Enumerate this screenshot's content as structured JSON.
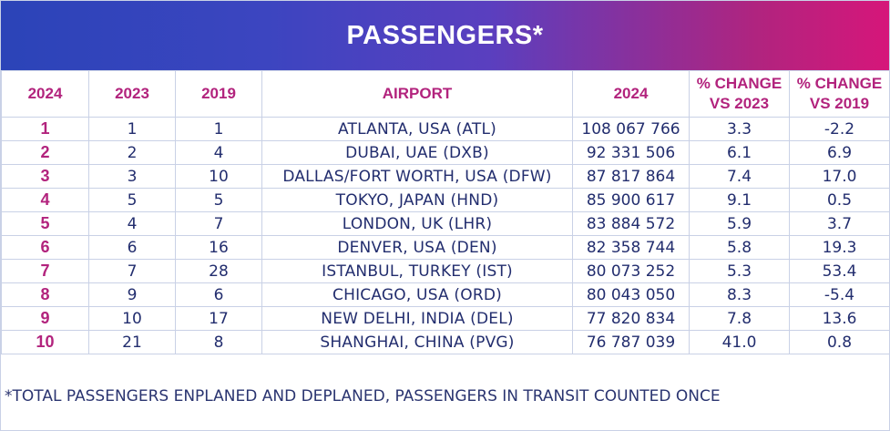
{
  "title": "PASSENGERS*",
  "headers": [
    "2024",
    "2023",
    "2019",
    "AIRPORT",
    "2024",
    "% CHANGE VS 2023",
    "% CHANGE VS 2019"
  ],
  "headers_lines": [
    [
      "2024"
    ],
    [
      "2023"
    ],
    [
      "2019"
    ],
    [
      "AIRPORT"
    ],
    [
      "2024"
    ],
    [
      "% CHANGE",
      "VS 2023"
    ],
    [
      "% CHANGE",
      "VS 2019"
    ]
  ],
  "rows": [
    [
      "1",
      "1",
      "1",
      "ATLANTA, USA (ATL)",
      "108 067 766",
      "3.3",
      "-2.2"
    ],
    [
      "2",
      "2",
      "4",
      "DUBAI, UAE (DXB)",
      "92 331 506",
      "6.1",
      "6.9"
    ],
    [
      "3",
      "3",
      "10",
      "DALLAS/FORT WORTH, USA (DFW)",
      "87 817 864",
      "7.4",
      "17.0"
    ],
    [
      "4",
      "5",
      "5",
      "TOKYO, JAPAN (HND)",
      "85 900 617",
      "9.1",
      "0.5"
    ],
    [
      "5",
      "4",
      "7",
      "LONDON, UK (LHR)",
      "83 884 572",
      "5.9",
      "3.7"
    ],
    [
      "6",
      "6",
      "16",
      "DENVER, USA (DEN)",
      "82 358 744",
      "5.8",
      "19.3"
    ],
    [
      "7",
      "7",
      "28",
      "ISTANBUL, TURKEY (IST)",
      "80 073 252",
      "5.3",
      "53.4"
    ],
    [
      "8",
      "9",
      "6",
      "CHICAGO, USA (ORD)",
      "80 043 050",
      "8.3",
      "-5.4"
    ],
    [
      "9",
      "10",
      "17",
      "NEW DELHI, INDIA (DEL)",
      "77 820 834",
      "7.8",
      "13.6"
    ],
    [
      "10",
      "21",
      "8",
      "SHANGHAI, CHINA (PVG)",
      "76 787 039",
      "41.0",
      "0.8"
    ]
  ],
  "footnote": "*TOTAL PASSENGERS ENPLANED AND DEPLANED, PASSENGERS IN TRANSIT COUNTED ONCE",
  "colors": {
    "header_text": "#b2237d",
    "body_text": "#222d6e",
    "banner_start": "#2b44b8",
    "banner_end": "#d6167a"
  }
}
